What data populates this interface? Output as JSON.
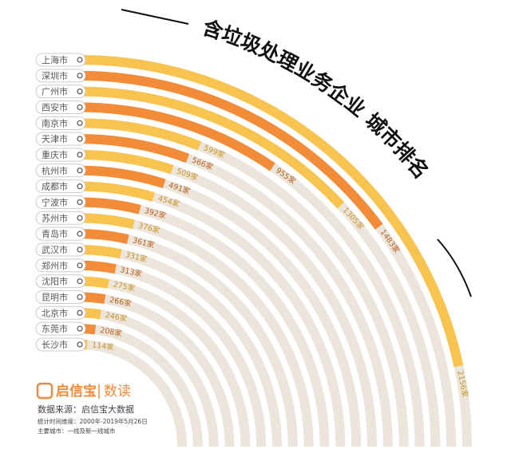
{
  "chart_data": {
    "type": "radial-bar",
    "title": "含垃圾处理业务企业 城市排名",
    "categories": [
      "上海市",
      "深圳市",
      "广州市",
      "西安市",
      "南京市",
      "天津市",
      "重庆市",
      "杭州市",
      "成都市",
      "宁波市",
      "苏州市",
      "青岛市",
      "武汉市",
      "郑州市",
      "沈阳市",
      "昆明市",
      "北京市",
      "东莞市",
      "长沙市"
    ],
    "values": [
      2156,
      1483,
      1305,
      955,
      599,
      566,
      509,
      491,
      454,
      392,
      376,
      361,
      331,
      313,
      275,
      266,
      246,
      208,
      114
    ],
    "value_labels": [
      "2156家",
      "1483家",
      "1305家",
      "955家",
      "599家",
      "566家",
      "509家",
      "491家",
      "454家",
      "392家",
      "376家",
      "361家",
      "331家",
      "313家",
      "275家",
      "266家",
      "246家",
      "208家",
      "114家"
    ],
    "colors": [
      "#f8c44f",
      "#f28c38"
    ],
    "label_colors": [
      "#c9932a",
      "#b85e1d"
    ],
    "track_color": "#ebe5db",
    "brand": "启信宝",
    "section": "数读",
    "source": "数据来源：启信宝大数据",
    "notes": [
      "统计时间维度：2000年-2019年5月26日",
      "主要城市：一线及新一线城市"
    ]
  }
}
